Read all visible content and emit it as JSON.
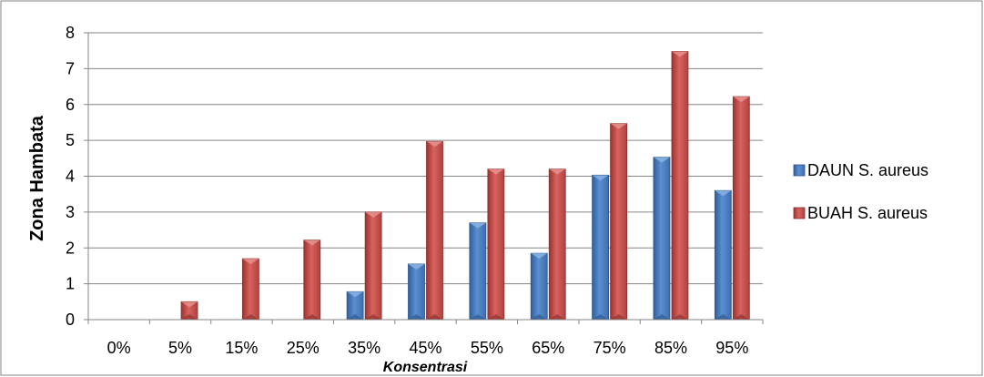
{
  "chart_data": {
    "type": "bar",
    "categories": [
      "0%",
      "5%",
      "15%",
      "25%",
      "35%",
      "45%",
      "55%",
      "65%",
      "75%",
      "85%",
      "95%"
    ],
    "series": [
      {
        "name": "DAUN S. aureus",
        "color": "#4a7ebb",
        "values": [
          0,
          0,
          0,
          0,
          0.78,
          1.55,
          2.7,
          1.85,
          4.03,
          4.53,
          3.6
        ]
      },
      {
        "name": "BUAH S. aureus",
        "color": "#c0504d",
        "values": [
          0,
          0.5,
          1.7,
          2.22,
          3.0,
          4.97,
          4.2,
          4.2,
          5.47,
          7.48,
          6.22
        ]
      }
    ],
    "title": "",
    "xlabel": "Konsentrasi",
    "ylabel": "Zona Hambata",
    "ylim": [
      0,
      8
    ],
    "yticks": [
      "0",
      "1",
      "2",
      "3",
      "4",
      "5",
      "6",
      "7",
      "8"
    ],
    "grid": true,
    "legend": "right"
  }
}
